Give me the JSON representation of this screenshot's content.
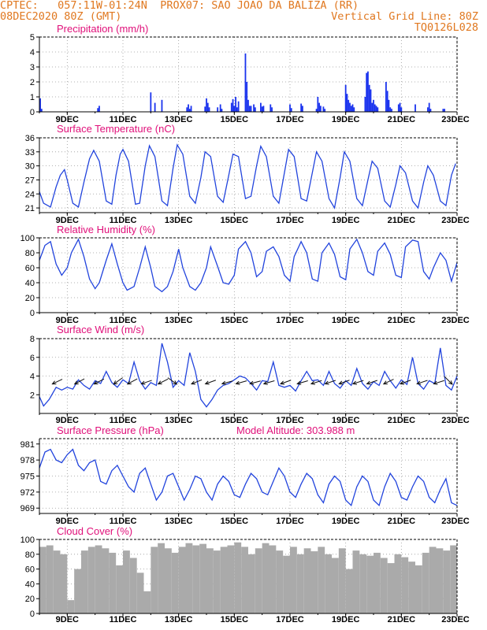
{
  "header": {
    "line1": "CPTEC:   057:11W-01:24N  PROX07: SAO JOAO DA BALIZA (RR)",
    "date": "08DEC2020 80Z (GMT)",
    "grid_note": "Vertical Grid Line: 80Z",
    "code": "TQ0126L028"
  },
  "x_axis": {
    "start_day": 8,
    "end_day": 23,
    "tick_labels": [
      "9DEC",
      "11DEC",
      "13DEC",
      "15DEC",
      "17DEC",
      "19DEC",
      "21DEC",
      "23DEC"
    ],
    "tick_days": [
      9,
      11,
      13,
      15,
      17,
      19,
      21,
      23
    ]
  },
  "chart_data": [
    {
      "id": "precip",
      "type": "bar",
      "title": "Precipitation (mm/h)",
      "xlabel": "",
      "ylabel": "",
      "ylim": [
        0,
        5
      ],
      "yticks": [
        0,
        1,
        2,
        3,
        4,
        5
      ],
      "grid": true,
      "color": "#1a33ee",
      "x": [
        8.03,
        8.08,
        10.1,
        10.15,
        12.0,
        12.15,
        12.4,
        13.3,
        13.35,
        13.4,
        13.45,
        13.95,
        14.0,
        14.05,
        14.1,
        14.4,
        14.5,
        14.55,
        14.9,
        14.95,
        15.0,
        15.05,
        15.1,
        15.15,
        15.4,
        15.45,
        15.5,
        15.55,
        15.6,
        15.7,
        15.75,
        15.95,
        16.0,
        16.05,
        16.3,
        16.35,
        17.0,
        17.05,
        17.4,
        17.45,
        17.95,
        18.0,
        18.05,
        18.1,
        18.2,
        18.25,
        19.0,
        19.05,
        19.1,
        19.15,
        19.2,
        19.25,
        19.3,
        19.7,
        19.75,
        19.8,
        19.85,
        19.9,
        19.95,
        20.0,
        20.05,
        20.1,
        20.15,
        20.45,
        20.5,
        20.55,
        20.6,
        20.65,
        20.9,
        20.95,
        21.0,
        21.5,
        21.95,
        22.0,
        22.05,
        22.5,
        22.55
      ],
      "values": [
        0.9,
        0.2,
        0.25,
        0.4,
        1.3,
        0.6,
        0.8,
        0.3,
        0.5,
        0.2,
        0.4,
        0.35,
        0.9,
        0.6,
        0.3,
        0.3,
        0.5,
        0.2,
        0.6,
        0.85,
        0.4,
        1.0,
        0.3,
        0.7,
        3.9,
        2.0,
        0.8,
        0.4,
        0.4,
        0.5,
        0.3,
        0.6,
        0.35,
        0.4,
        0.5,
        0.3,
        0.5,
        0.25,
        0.55,
        0.4,
        0.2,
        1.0,
        0.6,
        0.4,
        0.35,
        0.2,
        1.8,
        1.2,
        0.8,
        0.6,
        0.4,
        0.5,
        0.3,
        1.0,
        2.6,
        2.7,
        1.8,
        1.5,
        0.6,
        0.8,
        0.5,
        0.4,
        0.3,
        2.0,
        1.4,
        0.8,
        0.3,
        0.2,
        0.5,
        0.6,
        0.3,
        0.5,
        0.3,
        0.6,
        0.2,
        0.2,
        0.2
      ]
    },
    {
      "id": "temp",
      "type": "line",
      "title": "Surface Temperature (nC)",
      "xlabel": "",
      "ylabel": "",
      "ylim": [
        20,
        36
      ],
      "yticks": [
        21,
        24,
        27,
        30,
        33,
        36
      ],
      "grid": true,
      "color": "#2244dd",
      "x": [
        8.0,
        8.15,
        8.4,
        8.6,
        8.75,
        8.9,
        9.0,
        9.2,
        9.4,
        9.6,
        9.8,
        9.95,
        10.15,
        10.4,
        10.6,
        10.75,
        10.9,
        11.0,
        11.2,
        11.45,
        11.6,
        11.8,
        11.95,
        12.15,
        12.4,
        12.6,
        12.8,
        12.95,
        13.15,
        13.4,
        13.6,
        13.8,
        13.95,
        14.15,
        14.4,
        14.6,
        14.8,
        14.95,
        15.15,
        15.4,
        15.6,
        15.8,
        15.95,
        16.15,
        16.4,
        16.6,
        16.8,
        16.95,
        17.15,
        17.4,
        17.6,
        17.8,
        17.95,
        18.15,
        18.4,
        18.6,
        18.8,
        18.95,
        19.15,
        19.4,
        19.6,
        19.8,
        19.95,
        20.15,
        20.4,
        20.6,
        20.8,
        20.95,
        21.15,
        21.4,
        21.6,
        21.8,
        21.95,
        22.15,
        22.4,
        22.6,
        22.8,
        22.95
      ],
      "values": [
        24.5,
        22.0,
        21.2,
        25.5,
        28.0,
        29.2,
        27.0,
        22.0,
        21.2,
        26.5,
        31.5,
        33.3,
        31.0,
        22.5,
        21.8,
        28.0,
        32.5,
        33.5,
        31.0,
        21.8,
        22.0,
        30.0,
        34.3,
        32.0,
        22.5,
        21.5,
        29.5,
        34.5,
        32.5,
        23.5,
        22.0,
        27.5,
        33.0,
        32.0,
        23.5,
        22.2,
        28.0,
        32.5,
        32.0,
        23.0,
        23.5,
        30.0,
        34.2,
        32.0,
        23.5,
        22.0,
        28.5,
        33.5,
        32.0,
        23.0,
        22.5,
        28.5,
        33.0,
        31.0,
        23.0,
        21.0,
        27.5,
        33.0,
        31.0,
        23.0,
        21.5,
        27.0,
        31.0,
        29.5,
        22.5,
        21.2,
        26.0,
        30.0,
        28.5,
        22.5,
        21.0,
        26.5,
        30.0,
        28.0,
        22.5,
        21.5,
        28.0,
        30.5
      ]
    },
    {
      "id": "rh",
      "type": "line",
      "title": "Relative Humidity (%)",
      "xlabel": "",
      "ylabel": "",
      "ylim": [
        0,
        100
      ],
      "yticks": [
        0,
        20,
        40,
        60,
        80,
        100
      ],
      "grid": true,
      "color": "#2244dd",
      "x": [
        8.0,
        8.2,
        8.4,
        8.6,
        8.8,
        9.0,
        9.15,
        9.4,
        9.6,
        9.8,
        10.0,
        10.15,
        10.4,
        10.6,
        10.8,
        11.0,
        11.15,
        11.4,
        11.6,
        11.8,
        12.0,
        12.15,
        12.4,
        12.6,
        12.8,
        13.0,
        13.15,
        13.4,
        13.6,
        13.8,
        14.0,
        14.15,
        14.4,
        14.6,
        14.8,
        15.0,
        15.15,
        15.4,
        15.6,
        15.8,
        16.0,
        16.15,
        16.4,
        16.6,
        16.8,
        17.0,
        17.15,
        17.4,
        17.6,
        17.8,
        18.0,
        18.15,
        18.4,
        18.6,
        18.8,
        19.0,
        19.15,
        19.4,
        19.6,
        19.8,
        20.0,
        20.15,
        20.4,
        20.6,
        20.8,
        21.0,
        21.15,
        21.4,
        21.6,
        21.8,
        22.0,
        22.15,
        22.4,
        22.6,
        22.8,
        23.0
      ],
      "values": [
        70,
        90,
        95,
        65,
        50,
        60,
        80,
        98,
        75,
        45,
        32,
        40,
        70,
        92,
        65,
        40,
        30,
        35,
        60,
        88,
        60,
        35,
        28,
        35,
        55,
        85,
        60,
        35,
        30,
        40,
        60,
        88,
        62,
        40,
        38,
        50,
        85,
        95,
        80,
        48,
        55,
        82,
        88,
        75,
        50,
        42,
        75,
        95,
        80,
        45,
        42,
        80,
        93,
        78,
        48,
        44,
        85,
        98,
        80,
        55,
        50,
        82,
        93,
        78,
        50,
        47,
        88,
        97,
        95,
        55,
        45,
        60,
        80,
        70,
        42,
        67
      ]
    },
    {
      "id": "wind",
      "type": "line",
      "title": "Surface Wind (m/s)",
      "xlabel": "",
      "ylabel": "",
      "ylim": [
        0,
        8
      ],
      "yticks": [
        2,
        4,
        6,
        8
      ],
      "grid": true,
      "color": "#2244dd",
      "x": [
        8.0,
        8.15,
        8.35,
        8.6,
        8.8,
        9.0,
        9.2,
        9.4,
        9.6,
        9.8,
        10.0,
        10.2,
        10.4,
        10.6,
        10.8,
        11.0,
        11.2,
        11.4,
        11.6,
        11.8,
        12.0,
        12.2,
        12.4,
        12.6,
        12.8,
        13.0,
        13.2,
        13.4,
        13.6,
        13.8,
        14.0,
        14.2,
        14.4,
        14.6,
        14.8,
        15.0,
        15.2,
        15.4,
        15.6,
        15.8,
        16.0,
        16.2,
        16.4,
        16.6,
        16.8,
        17.0,
        17.2,
        17.4,
        17.6,
        17.8,
        18.0,
        18.2,
        18.4,
        18.6,
        18.8,
        19.0,
        19.2,
        19.4,
        19.6,
        19.8,
        20.0,
        20.2,
        20.4,
        20.6,
        20.8,
        21.0,
        21.2,
        21.4,
        21.6,
        21.8,
        22.0,
        22.2,
        22.4,
        22.6,
        22.8,
        23.0
      ],
      "values": [
        1.8,
        0.8,
        1.5,
        2.8,
        2.5,
        2.8,
        2.6,
        3.6,
        3.0,
        2.6,
        3.5,
        3.2,
        4.5,
        3.3,
        2.8,
        3.6,
        3.2,
        5.5,
        3.5,
        2.6,
        3.3,
        3.0,
        7.5,
        5.5,
        2.8,
        3.5,
        3.0,
        6.5,
        4.5,
        1.5,
        0.7,
        1.5,
        2.5,
        3.0,
        3.2,
        3.6,
        4.0,
        3.8,
        3.2,
        2.5,
        3.5,
        3.4,
        5.5,
        3.0,
        2.8,
        3.0,
        2.4,
        3.5,
        4.5,
        3.5,
        3.6,
        3.0,
        4.5,
        3.2,
        2.7,
        3.5,
        3.0,
        4.8,
        3.2,
        2.6,
        3.4,
        3.0,
        4.5,
        3.5,
        2.7,
        3.6,
        3.1,
        6.0,
        3.2,
        2.6,
        3.5,
        3.2,
        7.0,
        3.0,
        2.5,
        4.0
      ],
      "arrows": {
        "x": [
          8.5,
          9.3,
          10.0,
          10.7,
          11.2,
          11.7,
          12.3,
          12.9,
          13.5,
          14.0,
          14.6,
          15.1,
          15.6,
          16.1,
          16.7,
          17.3,
          17.8,
          18.3,
          18.8,
          19.3,
          19.8,
          20.4,
          21.0,
          21.6,
          22.2,
          22.8
        ],
        "u": [
          2.5,
          2.8,
          3.0,
          2.5,
          2.8,
          3.5,
          3.0,
          -2.5,
          2.0,
          2.8,
          3.0,
          2.5,
          3.0,
          3.5,
          2.5,
          2.8,
          3.2,
          3.0,
          2.5,
          2.8,
          3.0,
          2.5,
          2.8,
          3.0,
          3.2,
          -2.0
        ],
        "v": [
          1.2,
          1.5,
          1.5,
          1.8,
          1.5,
          1.2,
          1.5,
          1.8,
          0.8,
          1.0,
          0.8,
          0.7,
          0.8,
          1.0,
          0.9,
          0.8,
          1.0,
          1.0,
          0.9,
          0.9,
          1.0,
          1.2,
          1.0,
          1.0,
          1.0,
          2.0
        ]
      }
    },
    {
      "id": "pressure",
      "type": "line",
      "title": "Surface Pressure (hPa)",
      "subtitle": "Model Altitude: 303.988 m",
      "xlabel": "",
      "ylabel": "",
      "ylim": [
        968,
        982
      ],
      "yticks": [
        969,
        972,
        975,
        978,
        981
      ],
      "grid": true,
      "color": "#2244dd",
      "x": [
        8.0,
        8.2,
        8.4,
        8.6,
        8.8,
        9.0,
        9.2,
        9.4,
        9.6,
        9.8,
        10.0,
        10.2,
        10.4,
        10.6,
        10.8,
        11.0,
        11.2,
        11.4,
        11.6,
        11.8,
        12.0,
        12.2,
        12.4,
        12.6,
        12.8,
        13.0,
        13.2,
        13.4,
        13.6,
        13.8,
        14.0,
        14.2,
        14.4,
        14.6,
        14.8,
        15.0,
        15.2,
        15.4,
        15.6,
        15.8,
        16.0,
        16.2,
        16.4,
        16.6,
        16.8,
        17.0,
        17.2,
        17.4,
        17.6,
        17.8,
        18.0,
        18.2,
        18.4,
        18.6,
        18.8,
        19.0,
        19.2,
        19.4,
        19.6,
        19.8,
        20.0,
        20.2,
        20.4,
        20.6,
        20.8,
        21.0,
        21.2,
        21.4,
        21.6,
        21.8,
        22.0,
        22.2,
        22.4,
        22.6,
        22.8,
        23.0
      ],
      "values": [
        976.5,
        979.5,
        980.0,
        978.0,
        977.5,
        979.0,
        980.0,
        977.0,
        976.0,
        977.5,
        978.0,
        974.0,
        973.5,
        976.0,
        977.0,
        975.0,
        973.0,
        972.0,
        975.5,
        976.5,
        973.5,
        970.5,
        972.0,
        975.0,
        975.5,
        973.0,
        970.5,
        972.5,
        975.0,
        974.5,
        972.0,
        970.5,
        973.5,
        975.0,
        974.0,
        971.5,
        971.0,
        973.5,
        975.5,
        974.5,
        972.0,
        971.5,
        974.0,
        976.5,
        975.0,
        972.0,
        971.0,
        973.5,
        975.5,
        974.5,
        971.5,
        970.0,
        973.5,
        975.0,
        974.0,
        970.5,
        969.5,
        973.0,
        975.0,
        974.0,
        970.5,
        969.5,
        973.0,
        975.5,
        974.0,
        971.0,
        970.5,
        973.0,
        975.0,
        974.0,
        971.0,
        970.0,
        972.5,
        974.5,
        970.0,
        969.5
      ]
    },
    {
      "id": "cloud",
      "type": "bar",
      "title": "Cloud Cover (%)",
      "xlabel": "",
      "ylabel": "",
      "ylim": [
        0,
        100
      ],
      "yticks": [
        0,
        20,
        40,
        60,
        80,
        100
      ],
      "grid": true,
      "color": "#aaaaaa",
      "x": [
        8.0,
        8.25,
        8.5,
        8.75,
        9.0,
        9.25,
        9.5,
        9.75,
        10.0,
        10.25,
        10.5,
        10.75,
        11.0,
        11.25,
        11.5,
        11.75,
        12.0,
        12.25,
        12.5,
        12.75,
        13.0,
        13.25,
        13.5,
        13.75,
        14.0,
        14.25,
        14.5,
        14.75,
        15.0,
        15.25,
        15.5,
        15.75,
        16.0,
        16.25,
        16.5,
        16.75,
        17.0,
        17.25,
        17.5,
        17.75,
        18.0,
        18.25,
        18.5,
        18.75,
        19.0,
        19.25,
        19.5,
        19.75,
        20.0,
        20.25,
        20.5,
        20.75,
        21.0,
        21.25,
        21.5,
        21.75,
        22.0,
        22.25,
        22.5,
        22.75
      ],
      "values": [
        90,
        92,
        85,
        80,
        18,
        60,
        85,
        90,
        92,
        88,
        82,
        65,
        85,
        75,
        55,
        30,
        90,
        95,
        88,
        82,
        90,
        95,
        92,
        94,
        88,
        85,
        90,
        92,
        96,
        90,
        80,
        88,
        95,
        92,
        85,
        78,
        90,
        80,
        88,
        84,
        90,
        80,
        75,
        88,
        60,
        85,
        80,
        78,
        82,
        75,
        68,
        80,
        76,
        70,
        65,
        82,
        90,
        88,
        85,
        92
      ]
    }
  ]
}
